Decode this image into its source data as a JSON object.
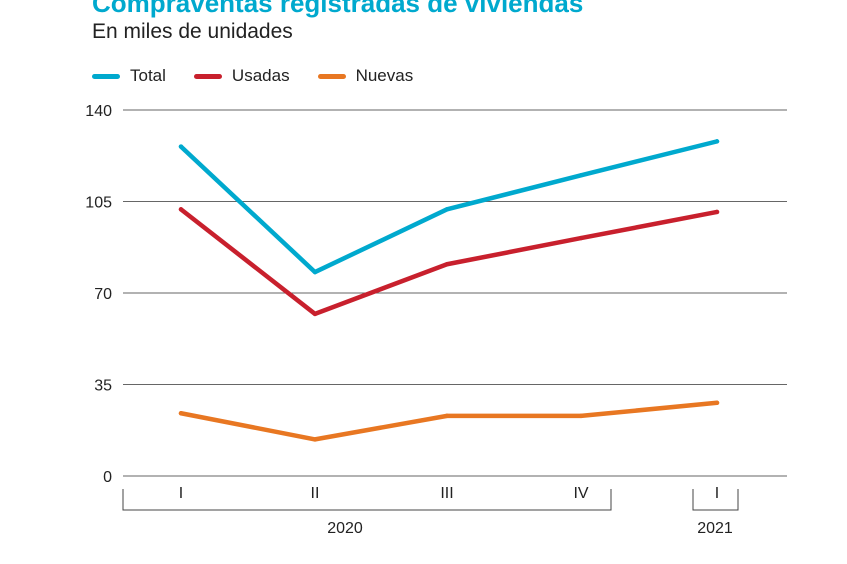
{
  "title": "Compraventas registradas de viviendas",
  "subtitle": "En miles de unidades",
  "chart_data": {
    "type": "line",
    "categories": [
      "I",
      "II",
      "III",
      "IV",
      "I"
    ],
    "groups": [
      {
        "label": "2020",
        "categories": [
          "I",
          "II",
          "III",
          "IV"
        ]
      },
      {
        "label": "2021",
        "categories": [
          "I"
        ]
      }
    ],
    "series": [
      {
        "name": "Total",
        "color": "#00a9ce",
        "values": [
          126,
          78,
          102,
          115,
          128
        ]
      },
      {
        "name": "Usadas",
        "color": "#c8202d",
        "values": [
          102,
          62,
          81,
          91,
          101
        ]
      },
      {
        "name": "Nuevas",
        "color": "#e87722",
        "values": [
          24,
          14,
          23,
          23,
          28
        ]
      }
    ],
    "yticks": [
      0,
      35,
      70,
      105,
      140
    ],
    "ylim": [
      0,
      140
    ],
    "grid": true,
    "legend": "top-left"
  }
}
